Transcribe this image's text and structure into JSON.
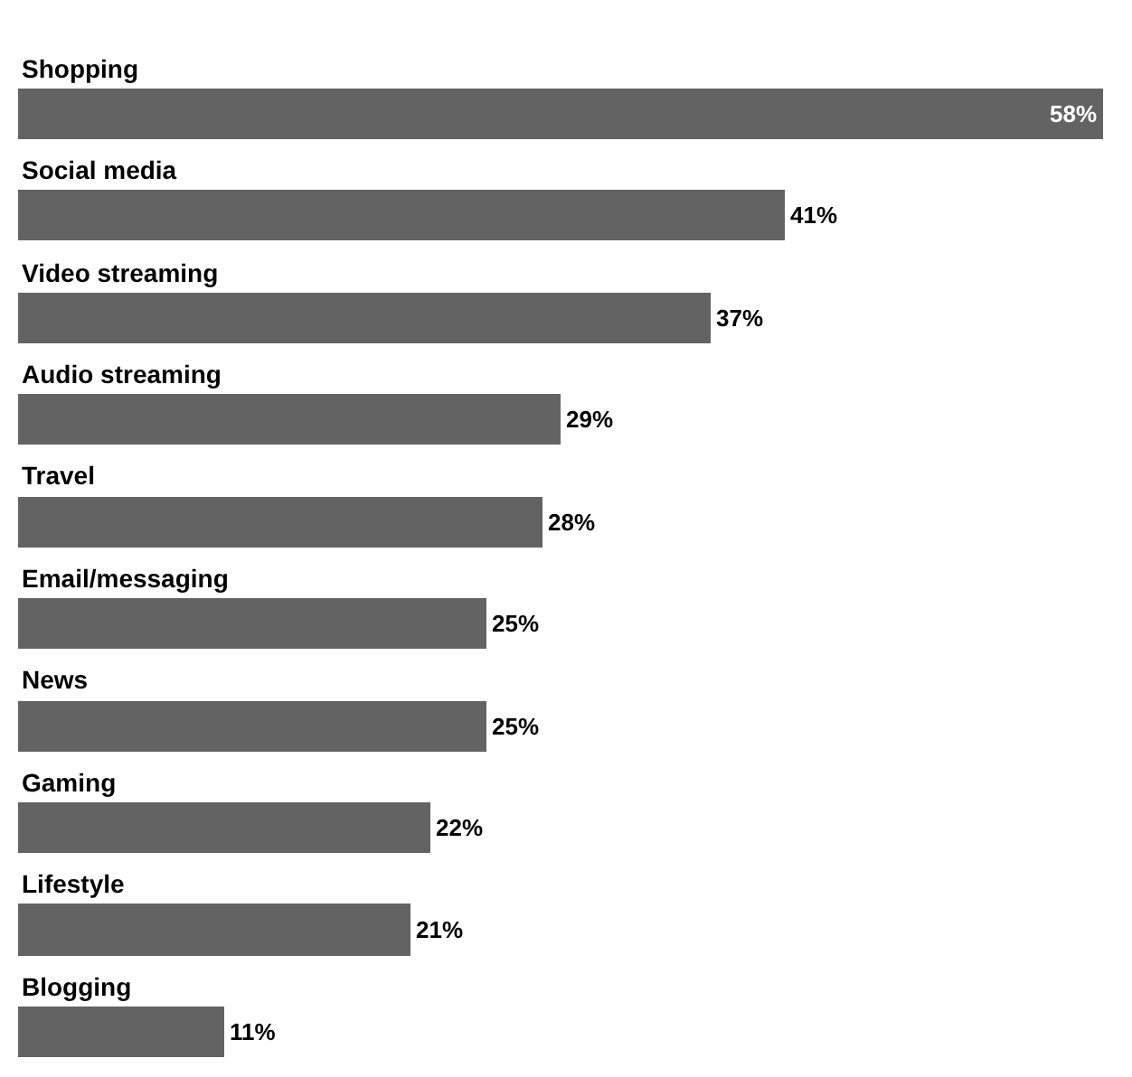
{
  "chart_data": {
    "type": "bar",
    "orientation": "horizontal",
    "value_labels": [
      "58%",
      "41%",
      "37%",
      "29%",
      "28%",
      "25%",
      "25%",
      "22%",
      "21%",
      "11%"
    ],
    "categories": [
      "Shopping",
      "Social media",
      "Video streaming",
      "Audio streaming",
      "Travel",
      "Email/messaging",
      "News",
      "Gaming",
      "Lifestyle",
      "Blogging"
    ],
    "values": [
      58,
      41,
      37,
      29,
      28,
      25,
      25,
      22,
      21,
      11
    ],
    "color": "#636363"
  }
}
